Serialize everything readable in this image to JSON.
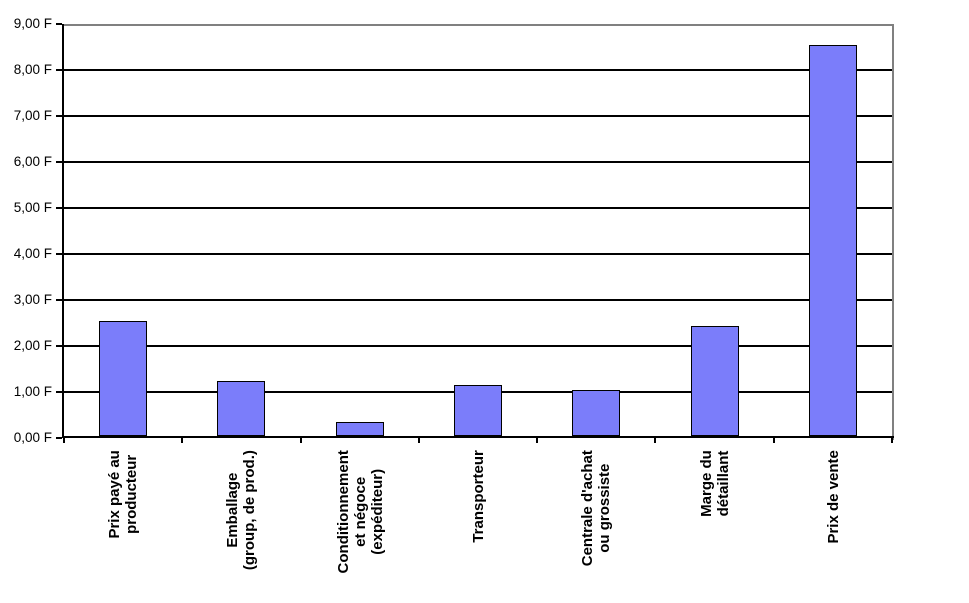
{
  "chart_data": {
    "type": "bar",
    "title": "",
    "xlabel": "",
    "ylabel": "",
    "categories": [
      "Prix payé au\nproducteur",
      "Emballage\n(group, de prod.)",
      "Conditionnement\net négoce\n(expéditeur)",
      "Transporteur",
      "Centrale d'achat\nou grossiste",
      "Marge du\ndétaillant",
      "Prix de vente"
    ],
    "values": [
      2.5,
      1.2,
      0.3,
      1.1,
      1.0,
      2.4,
      8.5
    ],
    "currency_unit": "F",
    "ylim": [
      0,
      9
    ],
    "y_tick_step": 1,
    "y_tick_labels_top_down": [
      "9,00 F",
      "8,00 F",
      "7,00 F",
      "6,00 F",
      "5,00 F",
      "4,00 F",
      "3,00 F",
      "2,00 F",
      "1,00 F",
      "0,00 F"
    ],
    "grid": true,
    "legend": false,
    "colors": {
      "bar_fill": "#7B7DFA",
      "bar_border": "#000000",
      "gridline": "#000000",
      "axis": "#000000",
      "plot_border": "#808080",
      "background": "#FFFFFF",
      "text": "#000000"
    }
  }
}
